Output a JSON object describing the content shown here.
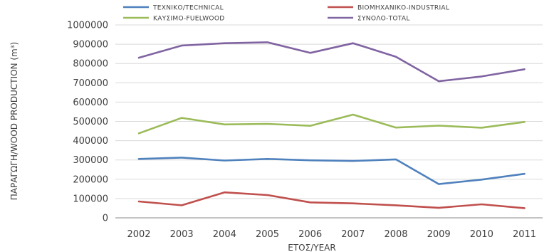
{
  "chart_data": {
    "type": "line",
    "title": "",
    "xlabel": "ΕΤΟΣ/YEAR",
    "ylabel": "ΠΑΡΑΓΩΓΗ/WOOD PRODUCTION (m³)",
    "categories": [
      "2002",
      "2003",
      "2004",
      "2005",
      "2006",
      "2007",
      "2008",
      "2009",
      "2010",
      "2011"
    ],
    "ylim": [
      0,
      1000000
    ],
    "yticks": [
      0,
      100000,
      200000,
      300000,
      400000,
      500000,
      600000,
      700000,
      800000,
      900000,
      1000000
    ],
    "ytick_labels": [
      "0",
      "100000",
      "200000",
      "300000",
      "400000",
      "500000",
      "600000",
      "700000",
      "800000",
      "900000",
      "1000000"
    ],
    "grid": true,
    "legend_position": "top",
    "series": [
      {
        "name": "ΤΕΧΝΙΚΟ/TECHNICAL",
        "color": "#4f81bd",
        "values": [
          305000,
          312000,
          297000,
          305000,
          298000,
          295000,
          303000,
          175000,
          198000,
          228000
        ]
      },
      {
        "name": "ΒΙΟΜΗΧΑΝΙΚΟ-INDUSTRIAL",
        "color": "#c0504d",
        "values": [
          85000,
          65000,
          132000,
          118000,
          80000,
          75000,
          65000,
          52000,
          70000,
          50000
        ]
      },
      {
        "name": "ΚΑΥΣΙΜΟ-FUELWOOD",
        "color": "#9bbb59",
        "values": [
          438000,
          518000,
          484000,
          487000,
          477000,
          535000,
          468000,
          478000,
          467000,
          497000
        ]
      },
      {
        "name": "ΣΥΝΟΛΟ-TOTAL",
        "color": "#8064a2",
        "values": [
          830000,
          893000,
          905000,
          910000,
          855000,
          905000,
          835000,
          708000,
          733000,
          770000
        ]
      }
    ]
  }
}
